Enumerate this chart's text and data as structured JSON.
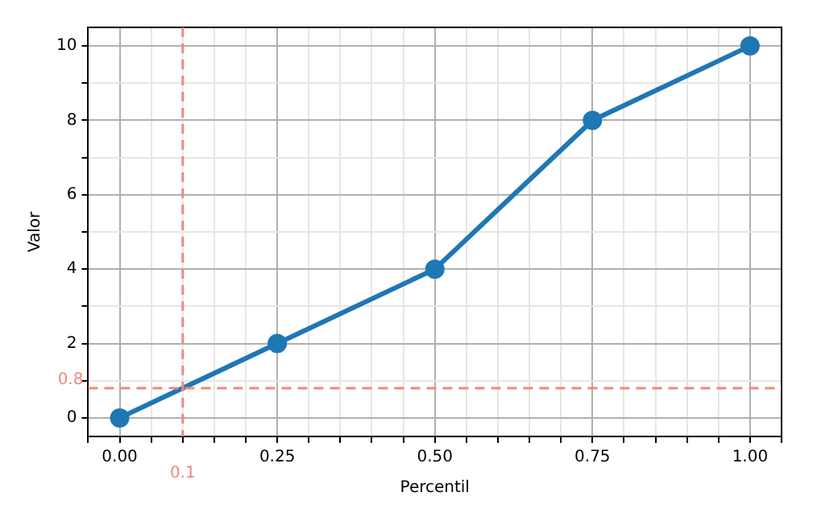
{
  "chart_data": {
    "type": "line",
    "xlabel": "Percentil",
    "ylabel": "Valor",
    "x": [
      0,
      0.25,
      0.5,
      0.75,
      1
    ],
    "series": [
      {
        "color": "#1f77b4",
        "values": [
          0,
          2,
          4,
          8,
          10
        ]
      }
    ],
    "xlim": [
      -0.05,
      1.05
    ],
    "xticks": [
      {
        "value": -0.05,
        "label": null
      },
      "0.00",
      {
        "value": 0.05,
        "label": null
      },
      {
        "value": 0.1,
        "label": null
      },
      {
        "value": 0.15,
        "label": null
      },
      {
        "value": 0.2,
        "label": null
      },
      {
        "value": 0.25,
        "label": "0.25"
      },
      {
        "value": 0.3,
        "label": null
      },
      {
        "value": 0.35,
        "label": null
      },
      {
        "value": 0.4,
        "label": null
      },
      {
        "value": 0.45,
        "label": null
      },
      {
        "value": 0.5,
        "label": "0.50"
      },
      {
        "value": 0.55,
        "label": null
      },
      {
        "value": 0.6,
        "label": null
      },
      {
        "value": 0.65,
        "label": null
      },
      {
        "value": 0.7,
        "label": null
      },
      {
        "value": 0.75,
        "label": "0.75"
      },
      {
        "value": 0.8,
        "label": null
      },
      {
        "value": 0.85,
        "label": null
      },
      {
        "value": 0.9,
        "label": null
      },
      {
        "value": 0.95,
        "label": null
      },
      {
        "value": 1,
        "label": "1.00"
      },
      {
        "value": 1.05,
        "label": null
      }
    ],
    "ylim": [
      -0.5,
      10.5
    ],
    "yticks": [
      0,
      {
        "value": 1,
        "label": null
      },
      2,
      {
        "value": 3,
        "label": null
      },
      4,
      {
        "value": 5,
        "label": null
      },
      6,
      {
        "value": 7,
        "label": null
      },
      8,
      {
        "value": 9,
        "label": null
      },
      10
    ],
    "grid": true,
    "marker": "circle",
    "line_style": "solid",
    "ref_lines": [
      {
        "axis": "x",
        "value": 0.1,
        "label": "0.1",
        "color": "#f08878",
        "line_style": "dashed"
      },
      {
        "axis": "y",
        "value": 0.8,
        "label": "0.8",
        "color": "#f08878",
        "line_style": "dashed"
      }
    ]
  }
}
